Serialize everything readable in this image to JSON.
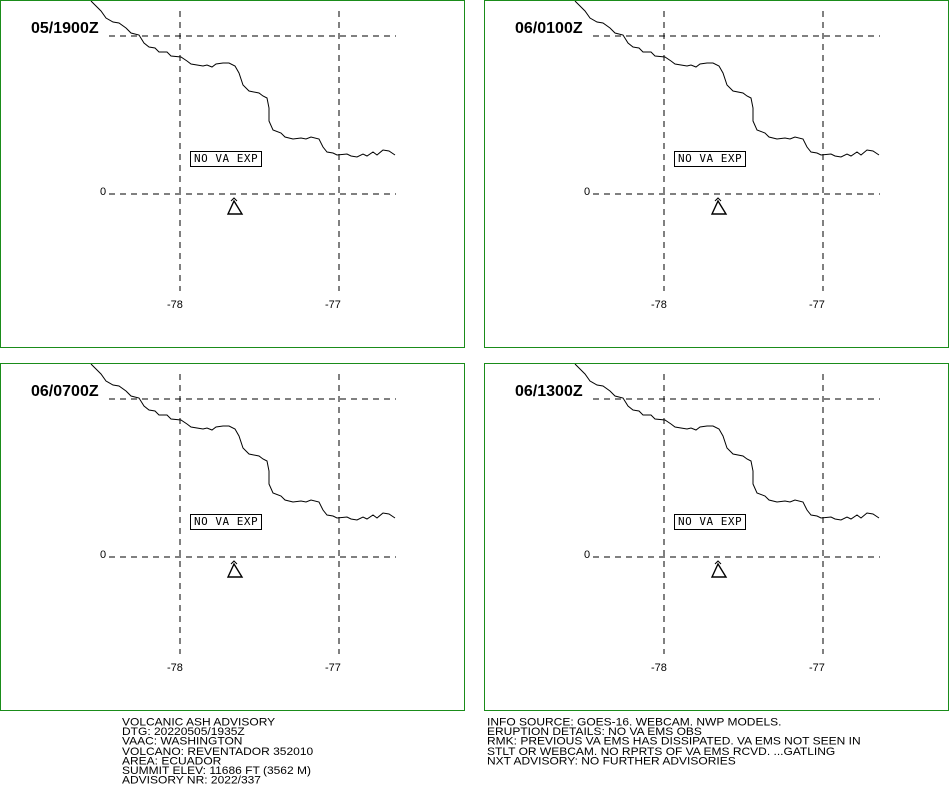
{
  "panels": [
    {
      "time": "05/1900Z",
      "status": "NO VA EXP",
      "lat_label": "0",
      "lon_labels": [
        "-78",
        "-77"
      ]
    },
    {
      "time": "06/0100Z",
      "status": "NO VA EXP",
      "lat_label": "0",
      "lon_labels": [
        "-78",
        "-77"
      ]
    },
    {
      "time": "06/0700Z",
      "status": "NO VA EXP",
      "lat_label": "0",
      "lon_labels": [
        "-78",
        "-77"
      ]
    },
    {
      "time": "06/1300Z",
      "status": "NO VA EXP",
      "lat_label": "0",
      "lon_labels": [
        "-78",
        "-77"
      ]
    }
  ],
  "advisory_left": [
    "VOLCANIC ASH ADVISORY",
    "DTG: 20220505/1935Z",
    "VAAC: WASHINGTON",
    "VOLCANO: REVENTADOR 352010",
    "AREA: ECUADOR",
    "SUMMIT ELEV: 11686 FT (3562 M)",
    "ADVISORY NR: 2022/337"
  ],
  "advisory_right": [
    "INFO SOURCE: GOES-16. WEBCAM. NWP MODELS.",
    "ERUPTION DETAILS: NO VA EMS OBS",
    "RMK: PREVIOUS VA EMS HAS DISSIPATED. VA EMS NOT SEEN IN",
    "STLT OR WEBCAM. NO RPRTS OF VA EMS RCVD. ...GATLING",
    "NXT ADVISORY: NO FURTHER ADVISORIES"
  ],
  "colors": {
    "panel_border": "#1a8c1a",
    "lines": "#000000"
  },
  "icons": {
    "volcano": "volcano-icon"
  }
}
